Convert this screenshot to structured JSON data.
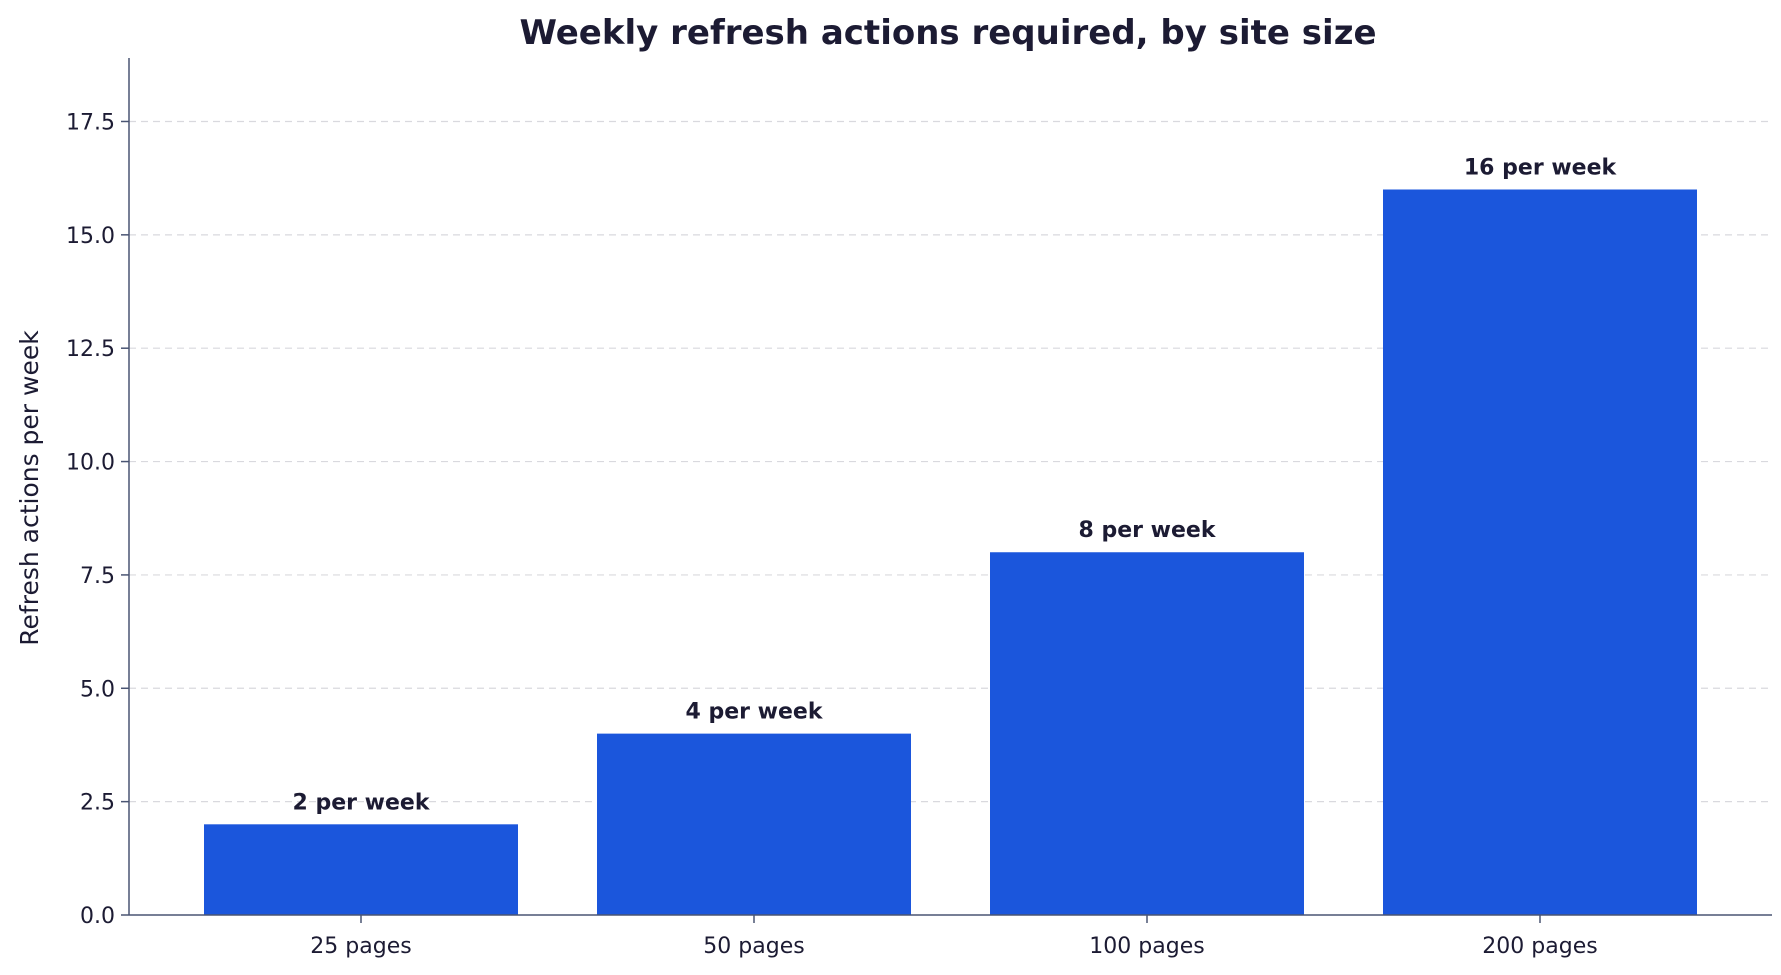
{
  "chart_data": {
    "type": "bar",
    "title": "Weekly refresh actions required, by site size",
    "xlabel": "",
    "ylabel": "Refresh actions per week",
    "categories": [
      "25 pages",
      "50 pages",
      "100 pages",
      "200 pages"
    ],
    "values": [
      2,
      4,
      8,
      16
    ],
    "data_labels": [
      "2 per week",
      "4 per week",
      "8 per week",
      "16 per week"
    ],
    "ylim": [
      0,
      18.9
    ],
    "yticks": [
      0,
      2.5,
      5,
      7.5,
      10,
      12.5,
      15,
      17.5
    ],
    "ytick_labels": [
      "0.0",
      "2.5",
      "5.0",
      "7.5",
      "10.0",
      "12.5",
      "15.0",
      "17.5"
    ],
    "grid": true,
    "legend": false,
    "bar_color": "#1b56dc"
  }
}
